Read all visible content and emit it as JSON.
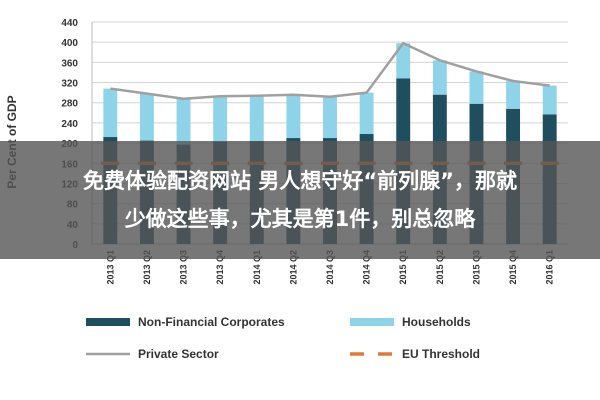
{
  "chart_data": {
    "type": "bar",
    "stacked": true,
    "categories": [
      "2013 Q1",
      "2013 Q2",
      "2013 Q3",
      "2013 Q4",
      "2014 Q1",
      "2014 Q2",
      "2014 Q3",
      "2014 Q4",
      "2015 Q1",
      "2015 Q2",
      "2015 Q3",
      "2015 Q4",
      "2016 Q1"
    ],
    "series": [
      {
        "name": "Non-Financial Corporates",
        "kind": "bar",
        "color": "#1f4e5f",
        "values": [
          212,
          205,
          197,
          203,
          204,
          210,
          210,
          218,
          328,
          296,
          278,
          268,
          257
        ]
      },
      {
        "name": "Households",
        "kind": "bar",
        "color": "#8fd3e8",
        "values": [
          96,
          93,
          91,
          90,
          90,
          86,
          82,
          82,
          70,
          68,
          64,
          55,
          57
        ]
      },
      {
        "name": "Private Sector",
        "kind": "line",
        "color": "#a0a0a0",
        "values": [
          308,
          298,
          288,
          293,
          294,
          296,
          292,
          300,
          398,
          364,
          342,
          323,
          314
        ]
      },
      {
        "name": "EU Threshold",
        "kind": "dashed-line",
        "color": "#e07a30",
        "values": [
          160,
          160,
          160,
          160,
          160,
          160,
          160,
          160,
          160,
          160,
          160,
          160,
          160
        ]
      }
    ],
    "ylabel": "Per Cent of GDP",
    "xlabel": "",
    "yticks": [
      0,
      40,
      80,
      120,
      160,
      200,
      240,
      280,
      320,
      360,
      400,
      440
    ],
    "ylim": [
      0,
      440
    ],
    "grid": true,
    "legend_position": "bottom"
  },
  "overlay": {
    "line1": "免费体验配资网站 男人想守好“前列腺”，那就",
    "line2": "少做这些事，尤其是第1件，别总忽略"
  }
}
